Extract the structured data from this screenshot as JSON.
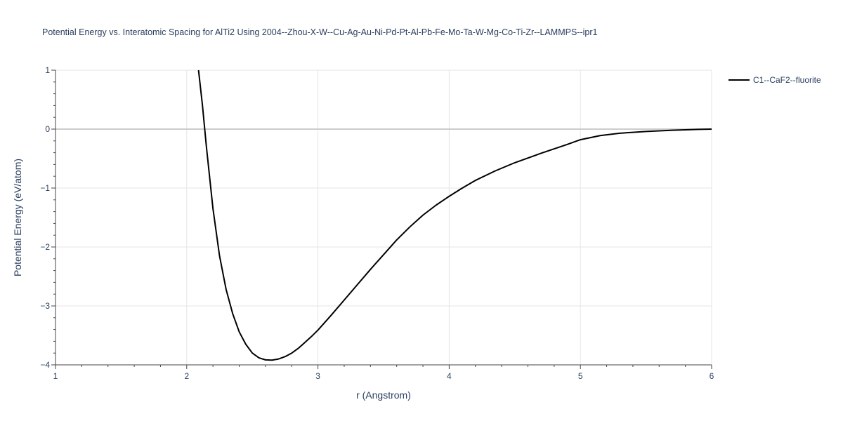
{
  "chart_data": {
    "type": "line",
    "title": "Potential Energy vs. Interatomic Spacing for AlTi2 Using 2004--Zhou-X-W--Cu-Ag-Au-Ni-Pd-Pt-Al-Pb-Fe-Mo-Ta-W-Mg-Co-Ti-Zr--LAMMPS--ipr1",
    "xlabel": "r (Angstrom)",
    "ylabel": "Potential Energy (eV/atom)",
    "xlim": [
      1,
      6
    ],
    "ylim": [
      -4,
      1
    ],
    "xticks": [
      1,
      2,
      3,
      4,
      5,
      6
    ],
    "xtick_labels": [
      "1",
      "2",
      "3",
      "4",
      "5",
      "6"
    ],
    "yticks": [
      1,
      0,
      -1,
      -2,
      -3,
      -4
    ],
    "ytick_labels": [
      "1",
      "0",
      "−1",
      "−2",
      "−3",
      "−4"
    ],
    "grid": true,
    "legend_position": "top-right",
    "series": [
      {
        "name": "C1--CaF2--fluorite",
        "color": "#000000",
        "x": [
          2.09,
          2.12,
          2.15,
          2.2,
          2.25,
          2.3,
          2.35,
          2.4,
          2.45,
          2.5,
          2.55,
          2.6,
          2.65,
          2.7,
          2.75,
          2.8,
          2.85,
          2.9,
          2.95,
          3.0,
          3.1,
          3.2,
          3.3,
          3.4,
          3.5,
          3.6,
          3.7,
          3.8,
          3.9,
          4.0,
          4.1,
          4.2,
          4.35,
          4.5,
          4.7,
          4.9,
          5.0,
          5.15,
          5.3,
          5.5,
          5.7,
          5.9,
          6.0
        ],
        "y": [
          1.0,
          0.4,
          -0.3,
          -1.35,
          -2.15,
          -2.72,
          -3.13,
          -3.44,
          -3.65,
          -3.8,
          -3.88,
          -3.915,
          -3.92,
          -3.9,
          -3.86,
          -3.8,
          -3.72,
          -3.62,
          -3.52,
          -3.41,
          -3.16,
          -2.9,
          -2.64,
          -2.38,
          -2.13,
          -1.88,
          -1.66,
          -1.46,
          -1.29,
          -1.14,
          -1.0,
          -0.87,
          -0.71,
          -0.57,
          -0.41,
          -0.26,
          -0.18,
          -0.11,
          -0.07,
          -0.04,
          -0.02,
          -0.005,
          0.0
        ]
      }
    ]
  }
}
